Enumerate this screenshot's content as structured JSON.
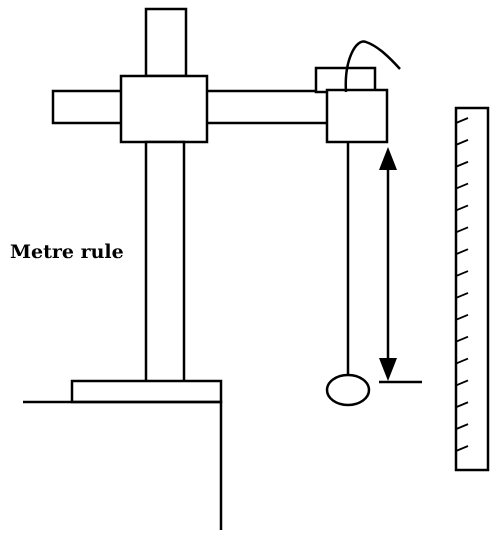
{
  "diagram": {
    "labels": {
      "metre_rule": "Metre rule"
    },
    "colors": {
      "stroke": "#000000",
      "background": "#ffffff"
    },
    "scale": {
      "tick_count": 16
    }
  }
}
